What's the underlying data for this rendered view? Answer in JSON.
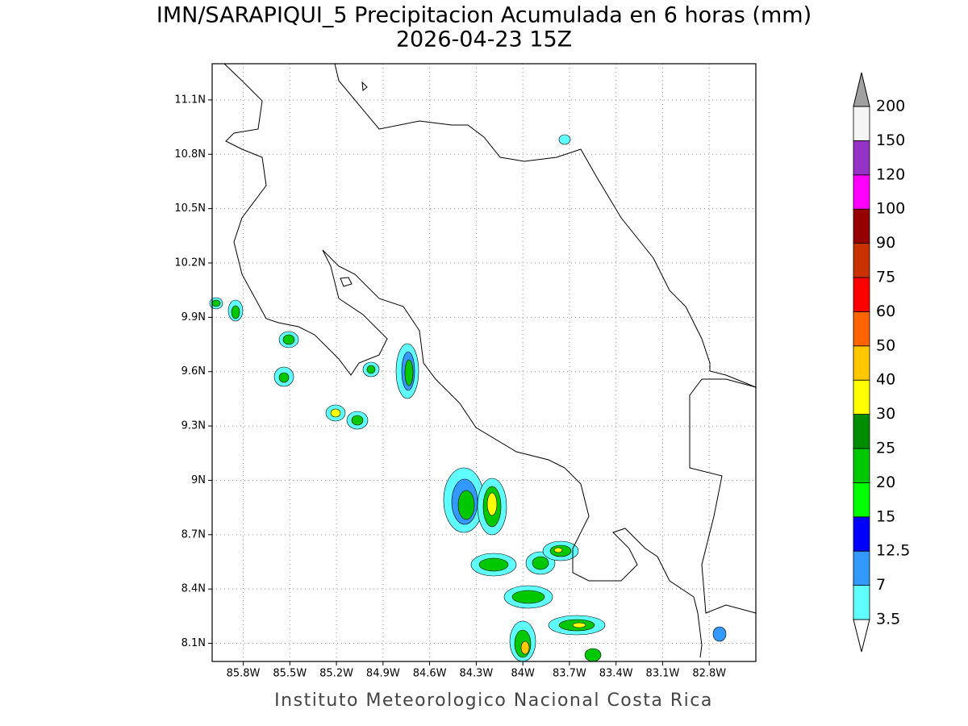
{
  "title": "IMN/SARAPIQUI_5 Precipitacion Acumulada en 6 horas (mm)",
  "subtitle": "2026-04-23 15Z",
  "footer": "Instituto Meteorologico Nacional Costa Rica",
  "map": {
    "xlim": [
      -86,
      -82.5
    ],
    "ylim": [
      8,
      11.3
    ],
    "grid": true,
    "xticks": [
      {
        "value": -85.8,
        "label": "85.8W"
      },
      {
        "value": -85.5,
        "label": "85.5W"
      },
      {
        "value": -85.2,
        "label": "85.2W"
      },
      {
        "value": -84.9,
        "label": "84.9W"
      },
      {
        "value": -84.6,
        "label": "84.6W"
      },
      {
        "value": -84.3,
        "label": "84.3W"
      },
      {
        "value": -84,
        "label": "84W"
      },
      {
        "value": -83.7,
        "label": "83.7W"
      },
      {
        "value": -83.4,
        "label": "83.4W"
      },
      {
        "value": -83.1,
        "label": "83.1W"
      },
      {
        "value": -82.8,
        "label": "82.8W"
      }
    ],
    "yticks": [
      {
        "value": 8.1,
        "label": "8.1N"
      },
      {
        "value": 8.4,
        "label": "8.4N"
      },
      {
        "value": 8.7,
        "label": "8.7N"
      },
      {
        "value": 9,
        "label": "9N"
      },
      {
        "value": 9.3,
        "label": "9.3N"
      },
      {
        "value": 9.6,
        "label": "9.6N"
      },
      {
        "value": 9.9,
        "label": "9.9N"
      },
      {
        "value": 10.2,
        "label": "10.2N"
      },
      {
        "value": 10.5,
        "label": "10.5N"
      },
      {
        "value": 10.8,
        "label": "10.8N"
      },
      {
        "value": 11.1,
        "label": "11.1N"
      }
    ]
  },
  "colorbar": {
    "levels": [
      3.5,
      7,
      12.5,
      15,
      20,
      25,
      30,
      40,
      50,
      60,
      75,
      90,
      100,
      120,
      150,
      200
    ],
    "colors": [
      "#ffffff",
      "#60ffff",
      "#3399ff",
      "#0000ff",
      "#00ff00",
      "#00c800",
      "#008c00",
      "#ffff00",
      "#ffc800",
      "#ff6400",
      "#ff0000",
      "#c83200",
      "#960000",
      "#ff00ff",
      "#9632c8",
      "#f5f5f5",
      "#a0a0a0"
    ]
  }
}
